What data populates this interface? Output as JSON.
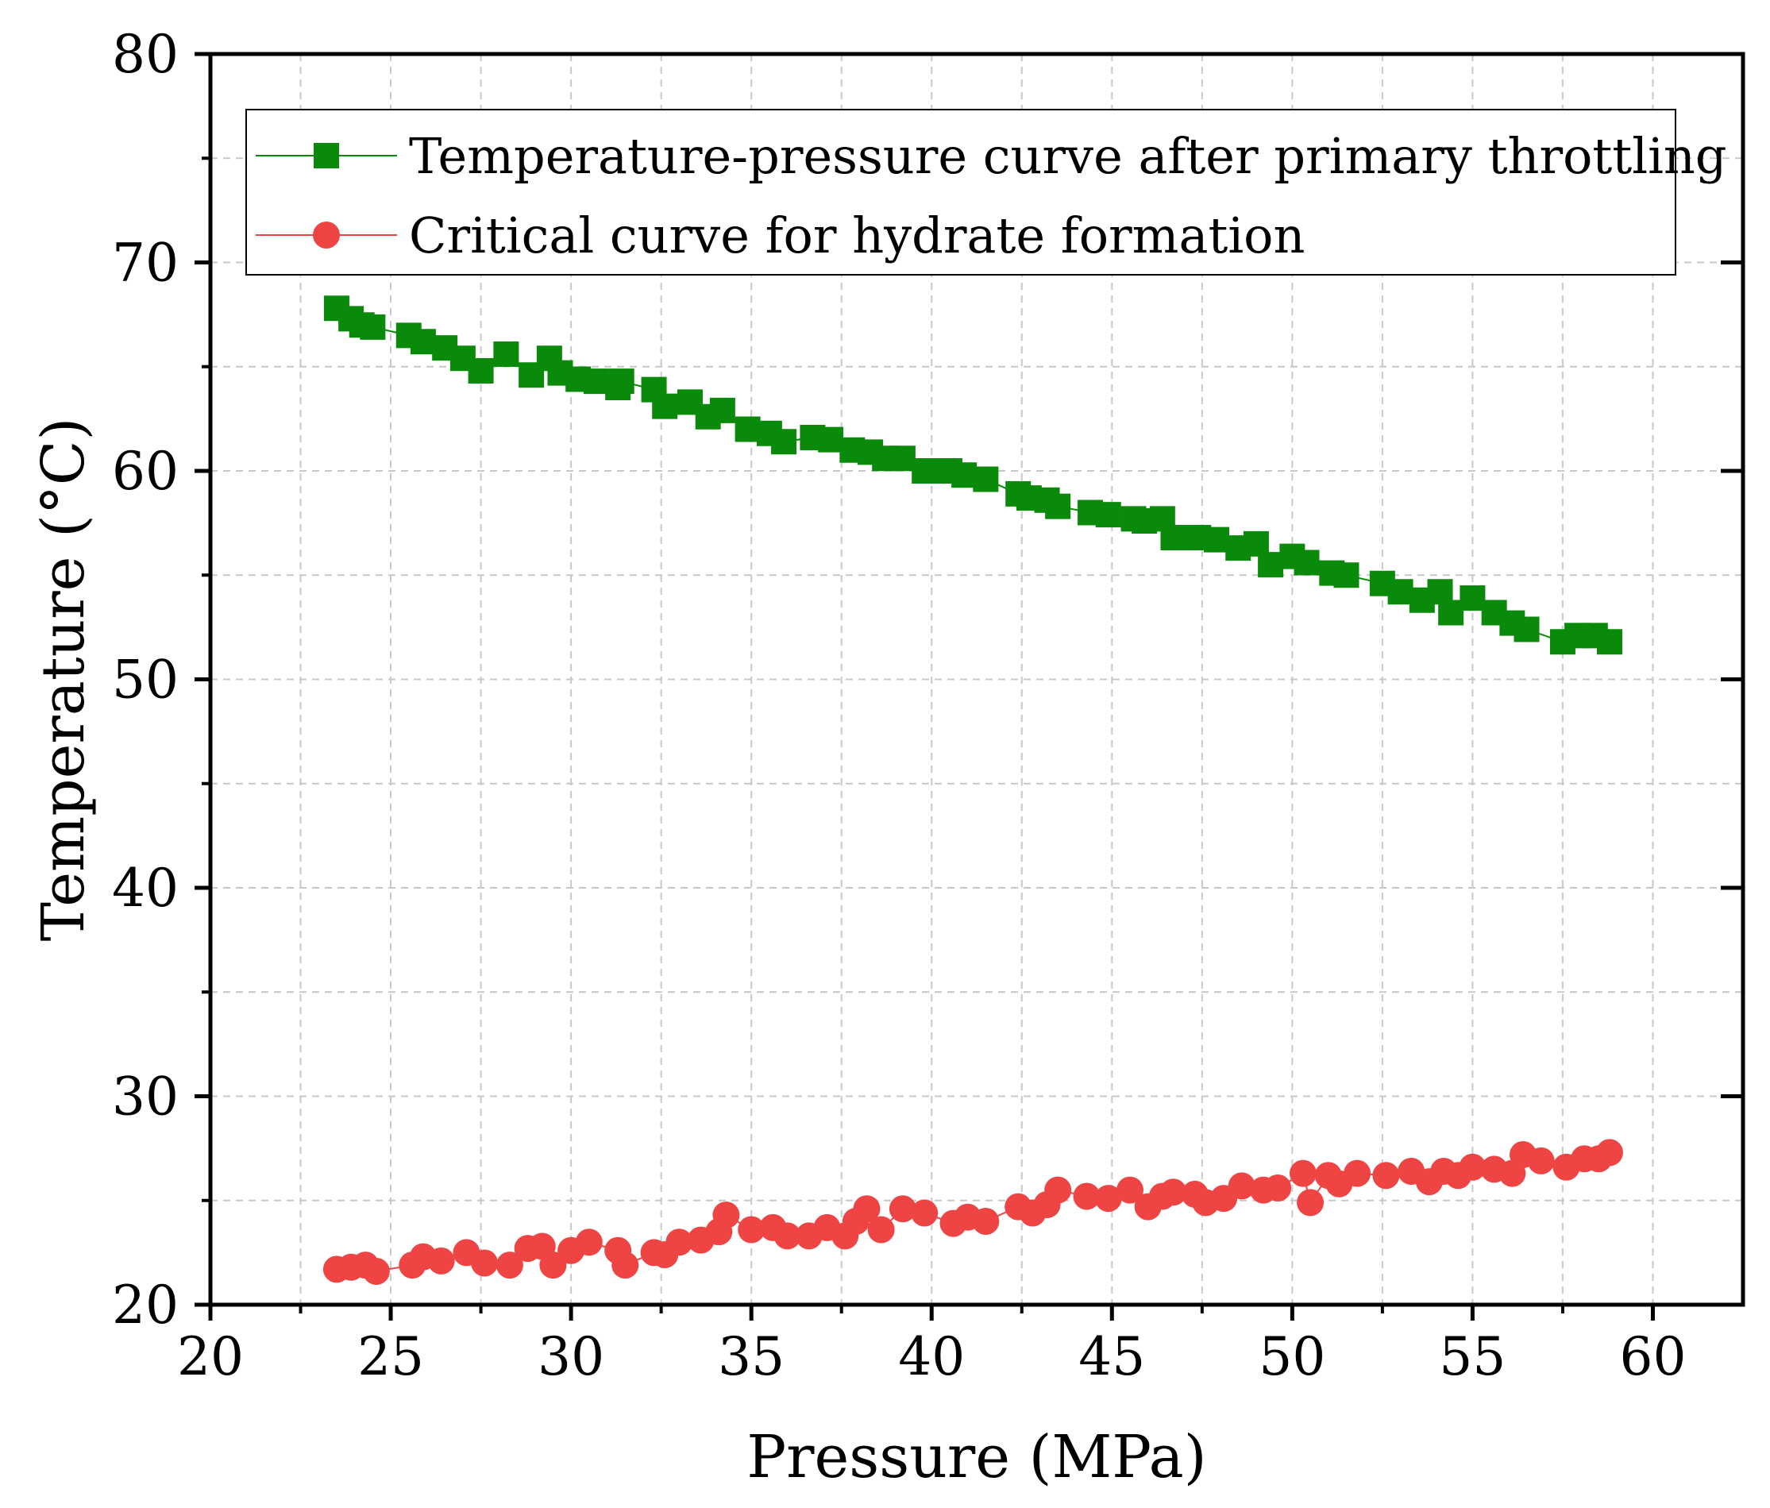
{
  "chart_data": {
    "type": "line",
    "title": "",
    "xlabel": "Pressure (MPa)",
    "ylabel": "Temperature (°C)",
    "xlim": [
      20,
      62.5
    ],
    "ylim": [
      20,
      80
    ],
    "xticks": [
      20,
      25,
      30,
      35,
      40,
      45,
      50,
      55,
      60
    ],
    "yticks": [
      20,
      30,
      40,
      50,
      60,
      70,
      80
    ],
    "grid": true,
    "legend_position": "top-right",
    "series": [
      {
        "name": "Temperature-pressure curve after primary throttling",
        "color": "#0a8a0a",
        "marker": "square",
        "x": [
          23.5,
          23.9,
          24.2,
          24.5,
          25.5,
          25.9,
          26.5,
          27.0,
          27.5,
          28.2,
          28.9,
          29.4,
          29.7,
          30.2,
          30.7,
          31.3,
          31.4,
          32.3,
          32.6,
          33.3,
          33.8,
          34.2,
          34.9,
          35.5,
          35.9,
          36.7,
          37.2,
          37.8,
          38.3,
          38.7,
          39.2,
          39.8,
          40.5,
          40.9,
          41.5,
          42.4,
          42.7,
          43.2,
          43.5,
          44.4,
          44.9,
          45.6,
          45.9,
          46.4,
          46.7,
          47.4,
          47.9,
          48.5,
          49.0,
          49.4,
          50.0,
          50.4,
          51.1,
          51.5,
          52.5,
          53.0,
          53.6,
          54.1,
          54.4,
          55.0,
          55.6,
          56.1,
          56.5,
          57.5,
          57.9,
          58.4,
          58.8
        ],
        "y": [
          67.8,
          67.3,
          67.0,
          66.9,
          66.5,
          66.2,
          65.9,
          65.4,
          64.8,
          65.6,
          64.6,
          65.4,
          64.7,
          64.4,
          64.3,
          64.0,
          64.3,
          63.9,
          63.1,
          63.3,
          62.6,
          62.9,
          62.0,
          61.8,
          61.4,
          61.6,
          61.5,
          61.0,
          60.9,
          60.6,
          60.6,
          60.0,
          60.0,
          59.8,
          59.6,
          58.9,
          58.7,
          58.6,
          58.3,
          58.0,
          57.9,
          57.7,
          57.6,
          57.7,
          56.8,
          56.8,
          56.7,
          56.3,
          56.5,
          55.5,
          55.9,
          55.6,
          55.1,
          55.0,
          54.6,
          54.2,
          53.8,
          54.2,
          53.2,
          53.9,
          53.2,
          52.7,
          52.4,
          51.8,
          52.1,
          52.1,
          51.8
        ]
      },
      {
        "name": "Critical curve for hydrate formation",
        "color": "#ee4444",
        "marker": "circle",
        "x": [
          23.5,
          23.9,
          24.3,
          24.6,
          25.6,
          25.9,
          26.4,
          27.1,
          27.6,
          28.3,
          28.8,
          29.2,
          29.5,
          30.0,
          30.5,
          31.3,
          31.5,
          32.3,
          32.6,
          33.0,
          33.6,
          34.1,
          34.3,
          35.0,
          35.6,
          36.0,
          36.6,
          37.1,
          37.6,
          37.9,
          38.2,
          38.6,
          39.2,
          39.8,
          40.6,
          41.0,
          41.5,
          42.4,
          42.8,
          43.2,
          43.5,
          44.3,
          44.9,
          45.5,
          46.0,
          46.4,
          46.7,
          47.3,
          47.6,
          48.1,
          48.6,
          49.2,
          49.6,
          50.3,
          50.5,
          51.0,
          51.3,
          51.8,
          52.6,
          53.3,
          53.8,
          54.2,
          54.6,
          55.0,
          55.6,
          56.1,
          56.4,
          56.9,
          57.6,
          58.1,
          58.5,
          58.8
        ],
        "y": [
          21.7,
          21.8,
          21.9,
          21.6,
          21.9,
          22.3,
          22.1,
          22.5,
          22.0,
          21.9,
          22.7,
          22.8,
          21.9,
          22.6,
          23.0,
          22.6,
          21.9,
          22.5,
          22.4,
          23.0,
          23.1,
          23.5,
          24.3,
          23.6,
          23.7,
          23.3,
          23.3,
          23.7,
          23.3,
          24.0,
          24.6,
          23.6,
          24.6,
          24.4,
          23.9,
          24.2,
          24.0,
          24.7,
          24.4,
          24.8,
          25.5,
          25.2,
          25.1,
          25.5,
          24.7,
          25.2,
          25.4,
          25.3,
          24.9,
          25.1,
          25.7,
          25.5,
          25.6,
          26.3,
          24.9,
          26.2,
          25.8,
          26.3,
          26.2,
          26.4,
          25.9,
          26.4,
          26.2,
          26.6,
          26.5,
          26.3,
          27.2,
          26.9,
          26.6,
          27.0,
          27.0,
          27.3
        ]
      }
    ]
  }
}
